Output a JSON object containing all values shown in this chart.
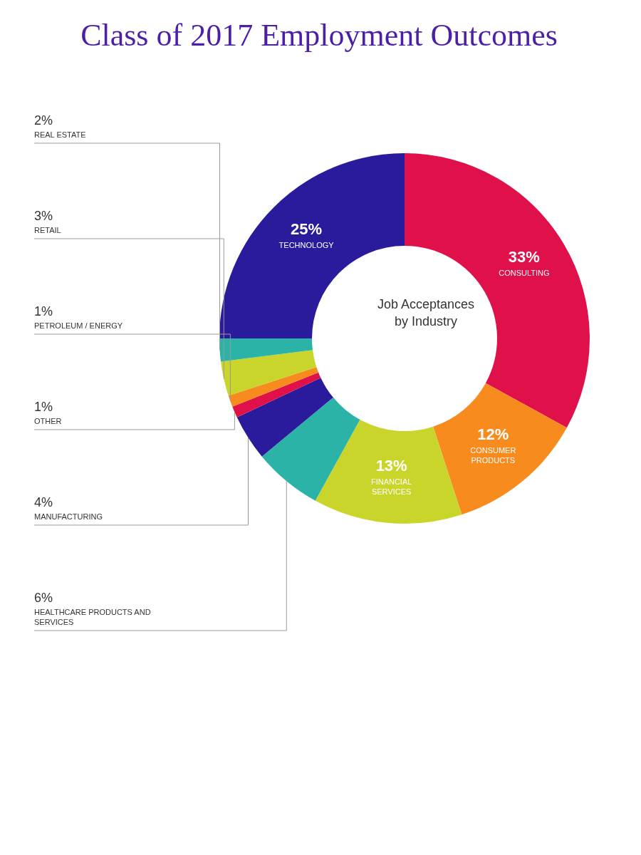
{
  "chart_data": {
    "type": "donut",
    "title": "Class of 2017 Employment Outcomes",
    "annotations": [
      "Job Acceptances by Industry"
    ],
    "categories": [
      "CONSULTING",
      "CONSUMER PRODUCTS",
      "FINANCIAL SERVICES",
      "HEALTHCARE PRODUCTS AND SERVICES",
      "MANUFACTURING",
      "OTHER",
      "PETROLEUM / ENERGY",
      "RETAIL",
      "REAL ESTATE",
      "TECHNOLOGY"
    ],
    "values": [
      33,
      12,
      13,
      6,
      4,
      1,
      1,
      3,
      2,
      25
    ],
    "value_labels": [
      "33%",
      "12%",
      "13%",
      "6%",
      "4%",
      "1%",
      "1%",
      "3%",
      "2%",
      "25%"
    ],
    "colors": [
      "#e0114a",
      "#f78b1e",
      "#c9d52a",
      "#2bb3a8",
      "#2a1a9c",
      "#e0114a",
      "#f78b1e",
      "#c9d52a",
      "#2bb3a8",
      "#2a1a9c"
    ],
    "legend": false
  }
}
